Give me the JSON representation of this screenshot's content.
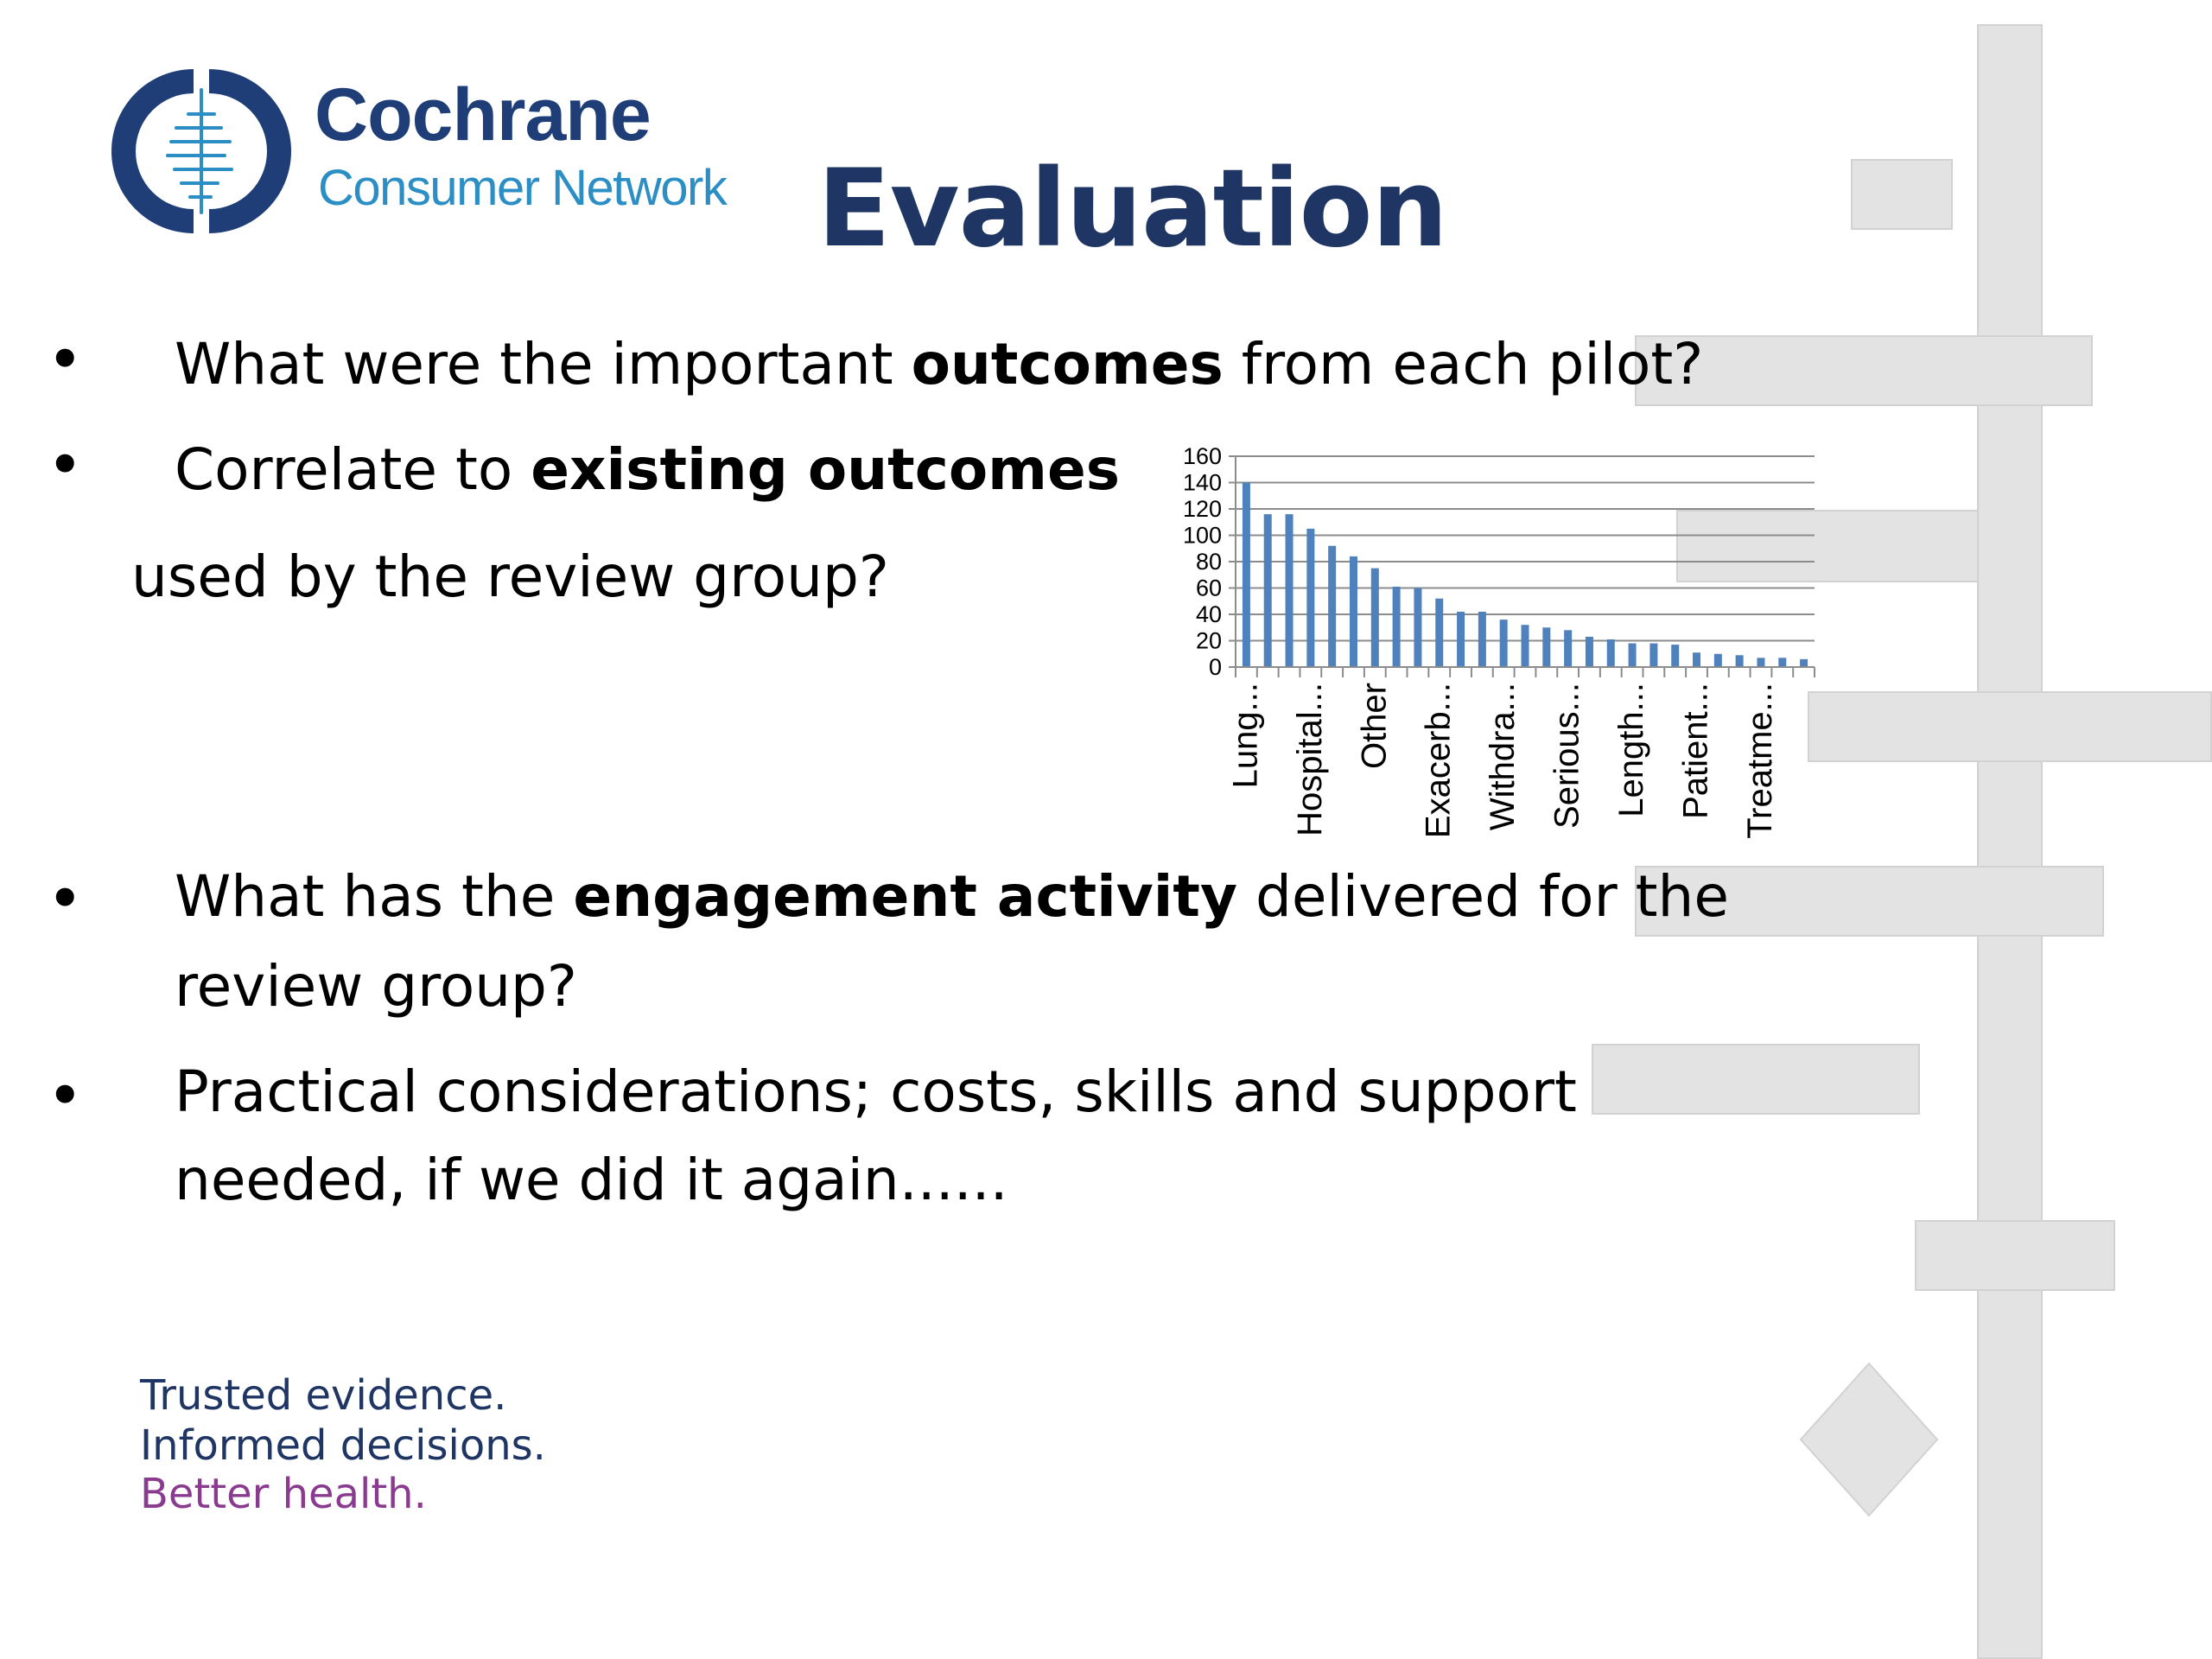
{
  "header": {
    "brand_name": "Cochrane",
    "brand_sub": "Consumer Network",
    "title": "Evaluation"
  },
  "content": {
    "b1": {
      "text": "What were the important ",
      "bold": "outcomes",
      "after": " from each pilot?"
    },
    "b2": {
      "text": "Correlate to ",
      "bold": "existing outcomes",
      "cont": "used by the review group?"
    },
    "b3": {
      "text": "What has the ",
      "bold": "engagement activity",
      "after": "  delivered for the",
      "cont": "review group?"
    },
    "b4": {
      "text": "Practical considerations; costs, skills and support",
      "cont": "needed, if we did it again......"
    },
    "bullet_char": "•"
  },
  "footer": {
    "tagline1": "Trusted evidence.",
    "tagline2": "Informed decisions.",
    "tagline3": "Better health."
  },
  "colors": {
    "brand_dark": "#1f3e78",
    "brand_light": "#2b8ec4",
    "title": "#1f3563",
    "tagline_purple": "#8a3b8f",
    "bar": "#4f81bd",
    "deco": "#e3e3e3"
  },
  "chart_data": {
    "type": "bar",
    "categories": [
      "Lung...",
      "",
      "",
      "Hospital...",
      "",
      "",
      "Other",
      "",
      "",
      "Exacerb...",
      "",
      "",
      "Withdra...",
      "",
      "",
      "Serious...",
      "",
      "",
      "Length...",
      "",
      "",
      "Patient...",
      "",
      "",
      "Treatme...",
      "",
      ""
    ],
    "values": [
      140,
      116,
      116,
      105,
      92,
      84,
      75,
      61,
      60,
      52,
      42,
      42,
      36,
      32,
      30,
      28,
      23,
      21,
      18,
      18,
      17,
      11,
      10,
      9,
      7,
      7,
      6
    ],
    "ylim": [
      0,
      160
    ],
    "yticks": [
      0,
      20,
      40,
      60,
      80,
      100,
      120,
      140,
      160
    ],
    "grid": true,
    "title": "",
    "xlabel": "",
    "ylabel": ""
  }
}
